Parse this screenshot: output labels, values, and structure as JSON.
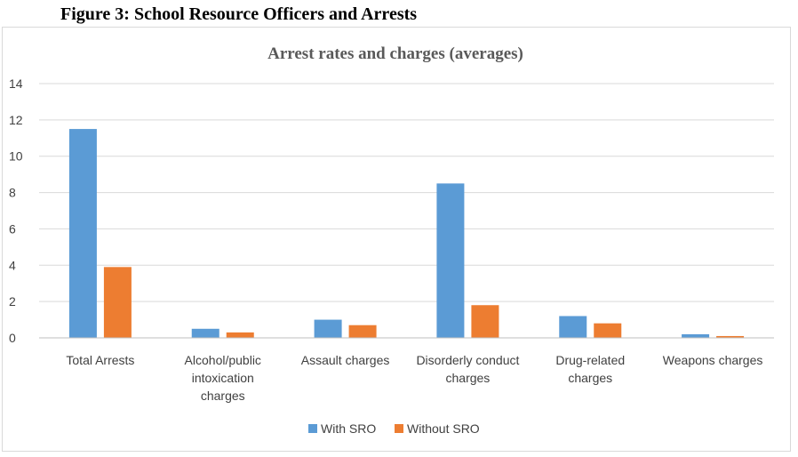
{
  "figure_title": "Figure 3: School Resource Officers and Arrests",
  "colors": {
    "with_sro": "#5b9bd5",
    "without_sro": "#ed7d31",
    "grid": "#d9d9d9",
    "text": "#404040"
  },
  "chart_data": {
    "type": "bar",
    "title": "Arrest rates and charges (averages)",
    "categories": [
      [
        "Total Arrests"
      ],
      [
        "Alcohol/public",
        "intoxication",
        "charges"
      ],
      [
        "Assault charges"
      ],
      [
        "Disorderly conduct",
        "charges"
      ],
      [
        "Drug-related",
        "charges"
      ],
      [
        "Weapons charges"
      ]
    ],
    "series": [
      {
        "name": "With SRO",
        "values": [
          11.5,
          0.5,
          1.0,
          8.5,
          1.2,
          0.2
        ]
      },
      {
        "name": "Without SRO",
        "values": [
          3.9,
          0.3,
          0.7,
          1.8,
          0.8,
          0.1
        ]
      }
    ],
    "yticks": [
      0,
      2,
      4,
      6,
      8,
      10,
      12,
      14
    ],
    "ylim": [
      0,
      14
    ],
    "xlabel": "",
    "ylabel": "",
    "grid": true,
    "legend": "bottom-center"
  }
}
